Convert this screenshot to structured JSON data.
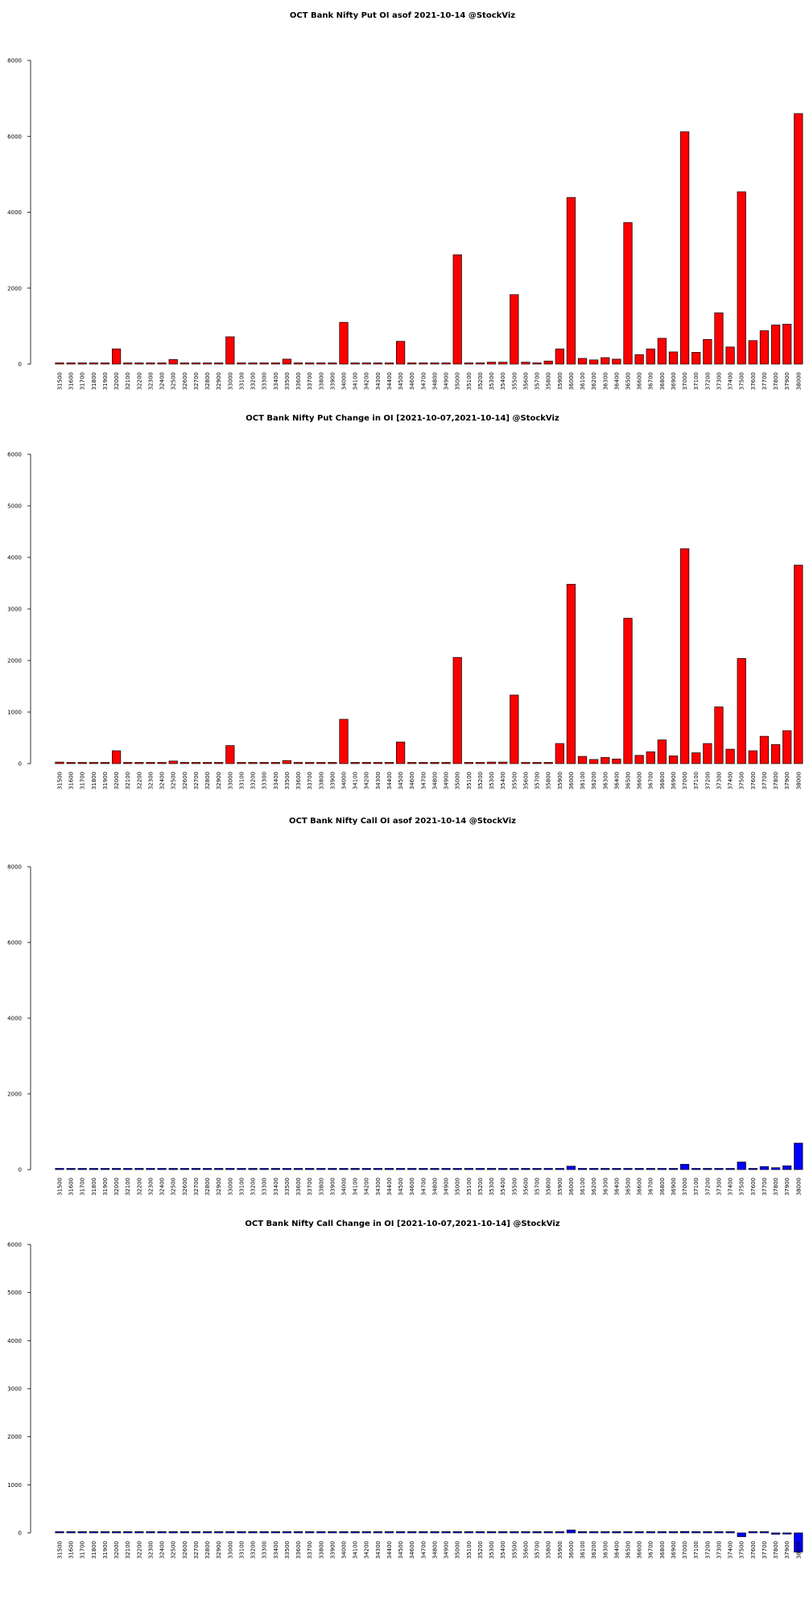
{
  "strikes": [
    "31500",
    "31600",
    "31700",
    "31800",
    "31900",
    "32000",
    "32100",
    "32200",
    "32300",
    "32400",
    "32500",
    "32600",
    "32700",
    "32800",
    "32900",
    "33000",
    "33100",
    "33200",
    "33300",
    "33400",
    "33500",
    "33600",
    "33700",
    "33800",
    "33900",
    "34000",
    "34100",
    "34200",
    "34300",
    "34400",
    "34500",
    "34600",
    "34700",
    "34800",
    "34900",
    "35000",
    "35100",
    "35200",
    "35300",
    "35400",
    "35500",
    "35600",
    "35700",
    "35800",
    "35900",
    "36000",
    "36100",
    "36200",
    "36300",
    "36400",
    "36500",
    "36600",
    "36700",
    "36800",
    "36900",
    "37000",
    "37100",
    "37200",
    "37300",
    "37400",
    "37500",
    "37600",
    "37700",
    "37800",
    "37900",
    "38000"
  ],
  "chart_data": [
    {
      "type": "bar",
      "title": "OCT Bank Nifty Put OI asof 2021-10-14 @StockViz",
      "color": "#ff0000",
      "ylim": [
        0,
        8000
      ],
      "yticks": [
        0,
        2000,
        4000,
        6000,
        8000
      ],
      "values": [
        30,
        5,
        5,
        5,
        5,
        400,
        5,
        5,
        5,
        5,
        120,
        5,
        5,
        5,
        5,
        720,
        5,
        5,
        5,
        5,
        130,
        5,
        5,
        5,
        5,
        1100,
        5,
        5,
        5,
        5,
        600,
        5,
        5,
        30,
        5,
        2880,
        20,
        10,
        50,
        50,
        1830,
        50,
        20,
        80,
        400,
        4390,
        150,
        110,
        170,
        130,
        3730,
        250,
        400,
        680,
        320,
        6120,
        310,
        650,
        1350,
        450,
        4540,
        620,
        880,
        1030,
        1050,
        6600
      ]
    },
    {
      "type": "bar",
      "title": "OCT Bank Nifty Put Change in OI [2021-10-07,2021-10-14] @StockViz",
      "color": "#ff0000",
      "ylim": [
        0,
        6000
      ],
      "yticks": [
        0,
        1000,
        2000,
        3000,
        4000,
        5000,
        6000
      ],
      "values": [
        30,
        5,
        5,
        5,
        5,
        250,
        5,
        5,
        5,
        5,
        50,
        5,
        5,
        5,
        5,
        350,
        5,
        5,
        5,
        5,
        60,
        5,
        5,
        5,
        5,
        860,
        5,
        5,
        5,
        5,
        420,
        5,
        5,
        20,
        5,
        2060,
        20,
        5,
        30,
        30,
        1330,
        20,
        20,
        20,
        390,
        3480,
        140,
        80,
        120,
        90,
        2820,
        160,
        230,
        460,
        150,
        4170,
        210,
        390,
        1100,
        280,
        2040,
        250,
        530,
        370,
        640,
        3850
      ]
    },
    {
      "type": "bar",
      "title": "OCT Bank Nifty Call OI asof 2021-10-14 @StockViz",
      "color": "#0000ff",
      "ylim": [
        0,
        8000
      ],
      "yticks": [
        0,
        2000,
        4000,
        6000,
        8000
      ],
      "values": [
        5,
        5,
        5,
        5,
        5,
        5,
        5,
        5,
        5,
        5,
        5,
        5,
        5,
        5,
        5,
        5,
        5,
        5,
        5,
        5,
        5,
        5,
        5,
        5,
        5,
        5,
        5,
        5,
        5,
        5,
        5,
        5,
        5,
        5,
        5,
        5,
        5,
        5,
        5,
        5,
        5,
        5,
        5,
        5,
        5,
        90,
        10,
        10,
        10,
        20,
        10,
        10,
        20,
        30,
        20,
        140,
        20,
        20,
        20,
        20,
        200,
        30,
        80,
        50,
        100,
        700
      ]
    },
    {
      "type": "bar",
      "title": "OCT Bank Nifty Call Change in OI [2021-10-07,2021-10-14] @StockViz",
      "color": "#0000ff",
      "ylim": [
        -500,
        6000
      ],
      "yticks": [
        0,
        1000,
        2000,
        3000,
        4000,
        5000,
        6000
      ],
      "values": [
        0,
        0,
        0,
        0,
        0,
        0,
        0,
        0,
        0,
        0,
        0,
        0,
        0,
        0,
        0,
        0,
        0,
        0,
        0,
        0,
        0,
        0,
        0,
        0,
        0,
        0,
        0,
        0,
        0,
        0,
        0,
        0,
        0,
        0,
        0,
        0,
        0,
        0,
        0,
        0,
        0,
        0,
        0,
        0,
        0,
        60,
        0,
        0,
        0,
        0,
        0,
        0,
        0,
        10,
        0,
        30,
        0,
        0,
        0,
        0,
        -80,
        0,
        10,
        -30,
        -20,
        -400
      ]
    }
  ]
}
